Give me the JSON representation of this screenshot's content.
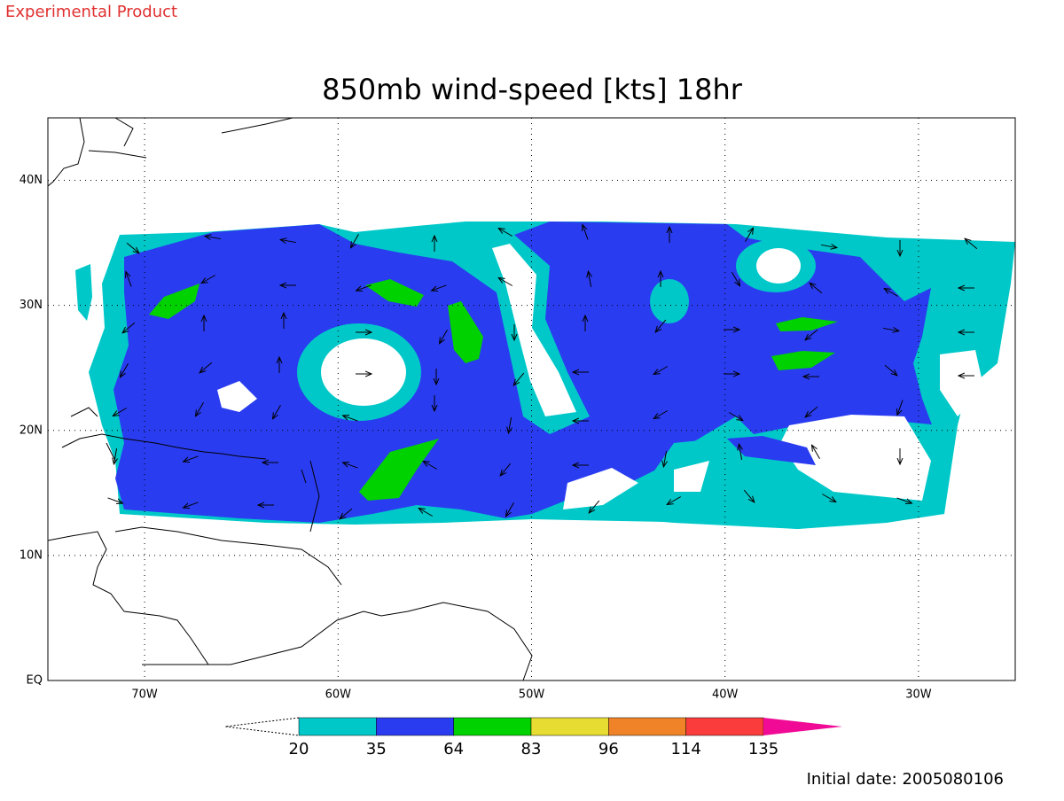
{
  "header": {
    "label": "Experimental Product",
    "title": "850mb wind-speed [kts] 18hr"
  },
  "map": {
    "lon_range": [
      -75,
      -25
    ],
    "lat_range": [
      0,
      45
    ],
    "lat_ticks": [
      {
        "value": 0,
        "label": "EQ"
      },
      {
        "value": 10,
        "label": "10N"
      },
      {
        "value": 20,
        "label": "20N"
      },
      {
        "value": 30,
        "label": "30N"
      },
      {
        "value": 40,
        "label": "40N"
      }
    ],
    "lon_ticks": [
      {
        "value": -70,
        "label": "70W"
      },
      {
        "value": -60,
        "label": "60W"
      },
      {
        "value": -50,
        "label": "50W"
      },
      {
        "value": -40,
        "label": "40W"
      },
      {
        "value": -30,
        "label": "30W"
      }
    ],
    "grid": true
  },
  "colorbar": {
    "bounds": [
      20,
      35,
      64,
      83,
      96,
      114,
      135
    ],
    "colors": [
      "#ffffff",
      "#00c8c8",
      "#2a3cf0",
      "#00d200",
      "#e6dc32",
      "#f08228",
      "#fa3c3c",
      "#f00a96"
    ]
  },
  "footer": {
    "initial_date": "Initial date: 2005080106"
  }
}
